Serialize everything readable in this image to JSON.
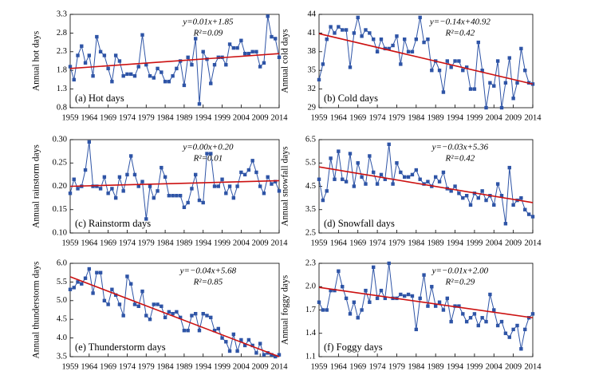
{
  "chart_data": [
    {
      "type": "line",
      "ylabel": "Annual hot days",
      "panel_label": "(a) Hot days",
      "equation": "y=0.01x+1.85",
      "r2": "R²=0.09",
      "x": [
        1959,
        1960,
        1961,
        1962,
        1963,
        1964,
        1965,
        1966,
        1967,
        1968,
        1969,
        1970,
        1971,
        1972,
        1973,
        1974,
        1975,
        1976,
        1977,
        1978,
        1979,
        1980,
        1981,
        1982,
        1983,
        1984,
        1985,
        1986,
        1987,
        1988,
        1989,
        1990,
        1991,
        1992,
        1993,
        1994,
        1995,
        1996,
        1997,
        1998,
        1999,
        2000,
        2001,
        2002,
        2003,
        2004,
        2005,
        2006,
        2007,
        2008,
        2009,
        2010,
        2011,
        2012,
        2013,
        2014
      ],
      "values": [
        1.9,
        1.55,
        2.2,
        2.45,
        2.0,
        2.2,
        1.65,
        2.7,
        2.3,
        2.2,
        1.85,
        1.5,
        2.2,
        2.05,
        1.65,
        1.7,
        1.7,
        1.65,
        1.9,
        2.75,
        1.95,
        1.65,
        1.6,
        1.85,
        1.75,
        1.5,
        1.5,
        1.65,
        1.85,
        2.05,
        1.4,
        2.15,
        1.95,
        2.65,
        0.9,
        2.3,
        2.1,
        1.45,
        1.95,
        2.15,
        2.15,
        1.95,
        2.5,
        2.4,
        2.4,
        2.6,
        2.25,
        2.25,
        2.3,
        2.3,
        1.9,
        2.0,
        3.25,
        2.7,
        2.65,
        2.15
      ],
      "color": "#2e54a6",
      "trend": {
        "color": "#cc1111",
        "values": [
          1.85,
          2.25
        ]
      },
      "xlim": [
        1959,
        2014
      ],
      "xticks": [
        1959,
        1964,
        1969,
        1974,
        1979,
        1984,
        1989,
        1994,
        1999,
        2004,
        2009,
        2014
      ],
      "ylim": [
        0.8,
        3.3
      ],
      "yticks": [
        0.8,
        1.3,
        1.8,
        2.3,
        2.8,
        3.3
      ]
    },
    {
      "type": "line",
      "ylabel": "Annual cold days",
      "panel_label": "(b) Cold days",
      "equation": "y=−0.14x+40.92",
      "r2": "R²=0.42",
      "x": [
        1959,
        1960,
        1961,
        1962,
        1963,
        1964,
        1965,
        1966,
        1967,
        1968,
        1969,
        1970,
        1971,
        1972,
        1973,
        1974,
        1975,
        1976,
        1977,
        1978,
        1979,
        1980,
        1981,
        1982,
        1983,
        1984,
        1985,
        1986,
        1987,
        1988,
        1989,
        1990,
        1991,
        1992,
        1993,
        1994,
        1995,
        1996,
        1997,
        1998,
        1999,
        2000,
        2001,
        2002,
        2003,
        2004,
        2005,
        2006,
        2007,
        2008,
        2009,
        2010,
        2011,
        2012,
        2013,
        2014
      ],
      "values": [
        33.5,
        36,
        40,
        42,
        41,
        42,
        41.5,
        41.5,
        35.5,
        41,
        43.5,
        40.5,
        41.5,
        41,
        40,
        38,
        40,
        38.5,
        38.5,
        39,
        40.5,
        36,
        40,
        38,
        38,
        40,
        43.5,
        39.5,
        40,
        35,
        36.5,
        35,
        31.5,
        36.5,
        35.5,
        36.5,
        36.5,
        35,
        35.5,
        32,
        32,
        39.5,
        35,
        29,
        33,
        32.5,
        36.5,
        29,
        33,
        37,
        30.5,
        33,
        38.5,
        35,
        33,
        32.8
      ],
      "color": "#2e54a6",
      "trend": {
        "color": "#cc1111",
        "values": [
          40.9,
          32.8
        ]
      },
      "xlim": [
        1959,
        2014
      ],
      "xticks": [
        1959,
        1964,
        1969,
        1974,
        1979,
        1984,
        1989,
        1994,
        1999,
        2004,
        2009,
        2014
      ],
      "ylim": [
        29,
        44
      ],
      "yticks": [
        29,
        32,
        35,
        38,
        41,
        44
      ]
    },
    {
      "type": "line",
      "ylabel": "Annual rainstorm days",
      "panel_label": "(c) Rainstorm days",
      "equation": "y=0.00x+0.20",
      "r2": "R²=0.01",
      "x": [
        1959,
        1960,
        1961,
        1962,
        1963,
        1964,
        1965,
        1966,
        1967,
        1968,
        1969,
        1970,
        1971,
        1972,
        1973,
        1974,
        1975,
        1976,
        1977,
        1978,
        1979,
        1980,
        1981,
        1982,
        1983,
        1984,
        1985,
        1986,
        1987,
        1988,
        1989,
        1990,
        1991,
        1992,
        1993,
        1994,
        1995,
        1996,
        1997,
        1998,
        1999,
        2000,
        2001,
        2002,
        2003,
        2004,
        2005,
        2006,
        2007,
        2008,
        2009,
        2010,
        2011,
        2012,
        2013,
        2014
      ],
      "values": [
        0.185,
        0.215,
        0.195,
        0.2,
        0.235,
        0.295,
        0.2,
        0.2,
        0.195,
        0.22,
        0.185,
        0.195,
        0.175,
        0.22,
        0.19,
        0.225,
        0.265,
        0.225,
        0.2,
        0.21,
        0.13,
        0.2,
        0.175,
        0.19,
        0.24,
        0.22,
        0.18,
        0.18,
        0.18,
        0.18,
        0.155,
        0.165,
        0.195,
        0.225,
        0.17,
        0.165,
        0.27,
        0.27,
        0.2,
        0.2,
        0.215,
        0.185,
        0.2,
        0.175,
        0.2,
        0.23,
        0.225,
        0.235,
        0.255,
        0.23,
        0.2,
        0.185,
        0.22,
        0.205,
        0.21,
        0.19
      ],
      "color": "#2e54a6",
      "trend": {
        "color": "#cc1111",
        "values": [
          0.2,
          0.212
        ]
      },
      "xlim": [
        1959,
        2014
      ],
      "xticks": [
        1959,
        1964,
        1969,
        1974,
        1979,
        1984,
        1989,
        1994,
        1999,
        2004,
        2009,
        2014
      ],
      "ylim": [
        0.1,
        0.3
      ],
      "yticks": [
        {
          "value": 0.1,
          "label": "0.10"
        },
        {
          "value": 0.15,
          "label": "0.15"
        },
        {
          "value": 0.2,
          "label": "0.20"
        },
        {
          "value": 0.25,
          "label": "0.25"
        },
        {
          "value": 0.3,
          "label": "0.30"
        }
      ]
    },
    {
      "type": "line",
      "ylabel": "Annual snowfall days",
      "panel_label": "(d) Snowfall days",
      "equation": "y=−0.03x+5.36",
      "r2": "R²=0.42",
      "x": [
        1959,
        1960,
        1961,
        1962,
        1963,
        1964,
        1965,
        1966,
        1967,
        1968,
        1969,
        1970,
        1971,
        1972,
        1973,
        1974,
        1975,
        1976,
        1977,
        1978,
        1979,
        1980,
        1981,
        1982,
        1983,
        1984,
        1985,
        1986,
        1987,
        1988,
        1989,
        1990,
        1991,
        1992,
        1993,
        1994,
        1995,
        1996,
        1997,
        1998,
        1999,
        2000,
        2001,
        2002,
        2003,
        2004,
        2005,
        2006,
        2007,
        2008,
        2009,
        2010,
        2011,
        2012,
        2013,
        2014
      ],
      "values": [
        4.8,
        3.9,
        4.3,
        5.7,
        4.8,
        6.0,
        4.8,
        4.7,
        5.9,
        4.5,
        5.5,
        4.9,
        4.6,
        5.8,
        5.1,
        4.6,
        5.0,
        4.8,
        6.3,
        4.6,
        5.5,
        5.1,
        4.9,
        4.9,
        5.0,
        5.2,
        4.8,
        4.6,
        4.7,
        4.5,
        4.9,
        4.7,
        5.1,
        4.4,
        4.3,
        4.5,
        4.2,
        4.0,
        4.1,
        3.7,
        4.2,
        4.0,
        4.3,
        3.9,
        4.1,
        3.7,
        4.6,
        4.1,
        2.9,
        5.3,
        3.7,
        3.9,
        4.0,
        3.5,
        3.3,
        3.2
      ],
      "color": "#2e54a6",
      "trend": {
        "color": "#cc1111",
        "values": [
          5.33,
          3.8
        ]
      },
      "xlim": [
        1959,
        2014
      ],
      "xticks": [
        1959,
        1964,
        1969,
        1974,
        1979,
        1984,
        1989,
        1994,
        1999,
        2004,
        2009,
        2014
      ],
      "ylim": [
        2.5,
        6.5
      ],
      "yticks": [
        2.5,
        3.5,
        4.5,
        5.5,
        6.5
      ]
    },
    {
      "type": "line",
      "ylabel": "Annual thunderstorm days",
      "panel_label": "(e) Thunderstorm days",
      "equation": "y=−0.04x+5.68",
      "r2": "R²=0.85",
      "x": [
        1959,
        1960,
        1961,
        1962,
        1963,
        1964,
        1965,
        1966,
        1967,
        1968,
        1969,
        1970,
        1971,
        1972,
        1973,
        1974,
        1975,
        1976,
        1977,
        1978,
        1979,
        1980,
        1981,
        1982,
        1983,
        1984,
        1985,
        1986,
        1987,
        1988,
        1989,
        1990,
        1991,
        1992,
        1993,
        1994,
        1995,
        1996,
        1997,
        1998,
        1999,
        2000,
        2001,
        2002,
        2003,
        2004,
        2005,
        2006,
        2007,
        2008,
        2009,
        2010,
        2011,
        2012,
        2013,
        2014
      ],
      "values": [
        5.3,
        5.35,
        5.5,
        5.45,
        5.6,
        5.85,
        5.2,
        5.75,
        5.75,
        5.0,
        4.9,
        5.3,
        5.15,
        4.9,
        4.6,
        5.65,
        5.45,
        4.9,
        4.85,
        5.25,
        4.6,
        4.5,
        4.9,
        4.9,
        4.85,
        4.55,
        4.7,
        4.65,
        4.7,
        4.55,
        4.2,
        4.2,
        4.6,
        4.65,
        4.2,
        4.65,
        4.6,
        4.55,
        4.2,
        4.25,
        4.0,
        3.9,
        3.65,
        4.1,
        3.65,
        3.95,
        3.8,
        3.95,
        3.8,
        3.6,
        3.85,
        3.55,
        3.6,
        3.55,
        3.5,
        3.55
      ],
      "color": "#2e54a6",
      "trend": {
        "color": "#cc1111",
        "values": [
          5.64,
          3.5
        ]
      },
      "xlim": [
        1959,
        2014
      ],
      "xticks": [
        1959,
        1964,
        1969,
        1974,
        1979,
        1984,
        1989,
        1994,
        1999,
        2004,
        2009,
        2014
      ],
      "ylim": [
        3.5,
        6.0
      ],
      "yticks": [
        3.5,
        {
          "value": 4.0,
          "label": "4.0"
        },
        4.5,
        {
          "value": 5.0,
          "label": "5.0"
        },
        5.5,
        {
          "value": 6.0,
          "label": "6.0"
        }
      ]
    },
    {
      "type": "line",
      "ylabel": "Annual foggy days",
      "panel_label": "(f) Foggy days",
      "equation": "y=−0.01x+2.00",
      "r2": "R²=0.29",
      "x": [
        1959,
        1960,
        1961,
        1962,
        1963,
        1964,
        1965,
        1966,
        1967,
        1968,
        1969,
        1970,
        1971,
        1972,
        1973,
        1974,
        1975,
        1976,
        1977,
        1978,
        1979,
        1980,
        1981,
        1982,
        1983,
        1984,
        1985,
        1986,
        1987,
        1988,
        1989,
        1990,
        1991,
        1992,
        1993,
        1994,
        1995,
        1996,
        1997,
        1998,
        1999,
        2000,
        2001,
        2002,
        2003,
        2004,
        2005,
        2006,
        2007,
        2008,
        2009,
        2010,
        2011,
        2012,
        2013,
        2014
      ],
      "values": [
        1.8,
        1.7,
        1.7,
        1.95,
        1.95,
        2.2,
        2.0,
        1.85,
        1.65,
        1.8,
        1.6,
        1.7,
        1.95,
        1.8,
        2.25,
        1.85,
        1.95,
        1.85,
        2.3,
        1.85,
        1.85,
        1.9,
        1.88,
        1.9,
        1.88,
        1.45,
        1.85,
        2.15,
        1.75,
        2.0,
        1.75,
        1.8,
        1.7,
        1.85,
        1.55,
        1.75,
        1.75,
        1.65,
        1.55,
        1.6,
        1.65,
        1.5,
        1.6,
        1.55,
        1.9,
        1.7,
        1.5,
        1.55,
        1.4,
        1.35,
        1.45,
        1.5,
        1.2,
        1.45,
        1.6,
        1.65
      ],
      "color": "#2e54a6",
      "trend": {
        "color": "#cc1111",
        "values": [
          1.99,
          1.6
        ]
      },
      "xlim": [
        1959,
        2014
      ],
      "xticks": [
        1959,
        1964,
        1969,
        1974,
        1979,
        1984,
        1989,
        1994,
        1999,
        2004,
        2009,
        2014
      ],
      "ylim": [
        1.1,
        2.3
      ],
      "yticks": [
        1.1,
        1.4,
        1.7,
        {
          "value": 2.0,
          "label": "2.0"
        },
        2.3
      ]
    }
  ]
}
